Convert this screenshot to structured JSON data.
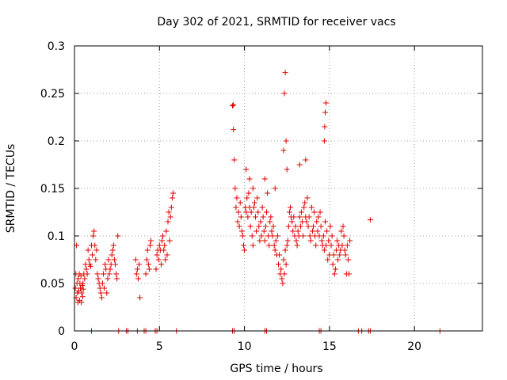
{
  "colors": {
    "series": "#e00000",
    "axis": "#000000",
    "grid": "#a0a0a0"
  },
  "chart_data": {
    "type": "scatter",
    "title": "Day 302 of 2021, SRMTID for receiver vacs",
    "xlabel": "GPS time / hours",
    "ylabel": "SRMTID / TECUs",
    "xlim": [
      0,
      24
    ],
    "ylim": [
      0,
      0.3
    ],
    "xticks": [
      0,
      5,
      10,
      15,
      20
    ],
    "xtick_labels": [
      "0",
      "5",
      "10",
      "15",
      "20"
    ],
    "yticks": [
      0,
      0.05,
      0.1,
      0.15,
      0.2,
      0.25,
      0.3
    ],
    "ytick_labels": [
      "0",
      "0.05",
      "0.1",
      "0.15",
      "0.2",
      "0.25",
      "0.3"
    ],
    "grid": true,
    "marker": "+",
    "series": [
      {
        "name": "SRMTID",
        "x": [
          0.05,
          0.08,
          0.1,
          0.12,
          0.15,
          0.18,
          0.2,
          0.22,
          0.25,
          0.28,
          0.3,
          0.32,
          0.35,
          0.38,
          0.4,
          0.42,
          0.45,
          0.48,
          0.5,
          0.52,
          0.55,
          0.6,
          0.65,
          0.7,
          0.75,
          0.8,
          0.85,
          0.9,
          0.95,
          1.0,
          1.05,
          1.1,
          1.15,
          1.2,
          1.25,
          1.3,
          1.35,
          1.4,
          1.45,
          1.5,
          1.55,
          1.6,
          1.65,
          1.7,
          1.75,
          1.8,
          1.85,
          1.9,
          1.95,
          2.0,
          2.05,
          2.1,
          2.15,
          2.2,
          2.25,
          2.3,
          2.35,
          2.4,
          2.45,
          2.5,
          2.55,
          3.6,
          3.65,
          3.7,
          3.75,
          3.8,
          3.85,
          4.2,
          4.25,
          4.3,
          4.35,
          4.4,
          4.45,
          4.5,
          4.8,
          4.85,
          4.9,
          4.95,
          5.0,
          5.05,
          5.1,
          5.15,
          5.2,
          5.25,
          5.3,
          5.35,
          5.4,
          5.45,
          5.5,
          5.55,
          5.6,
          5.65,
          5.7,
          5.75,
          5.8,
          9.3,
          9.35,
          9.4,
          9.45,
          9.5,
          9.55,
          9.6,
          9.65,
          9.7,
          9.75,
          9.8,
          9.85,
          9.9,
          9.95,
          10.0,
          10.05,
          10.1,
          10.15,
          10.2,
          10.25,
          10.3,
          10.35,
          10.4,
          10.45,
          10.5,
          10.55,
          10.6,
          10.65,
          10.7,
          10.75,
          10.8,
          10.85,
          10.9,
          10.95,
          11.0,
          11.05,
          11.1,
          11.15,
          11.2,
          11.25,
          11.3,
          11.35,
          11.4,
          11.45,
          11.5,
          11.55,
          11.6,
          11.65,
          11.7,
          11.75,
          11.8,
          11.85,
          11.9,
          11.95,
          12.0,
          12.05,
          12.1,
          12.15,
          12.2,
          12.25,
          12.3,
          12.35,
          12.4,
          12.45,
          12.5,
          12.55,
          12.6,
          12.65,
          12.7,
          12.75,
          12.8,
          12.85,
          12.9,
          12.95,
          13.0,
          13.05,
          13.1,
          13.15,
          13.2,
          13.25,
          13.3,
          13.35,
          13.4,
          13.45,
          13.5,
          13.55,
          13.6,
          13.65,
          13.7,
          13.75,
          13.8,
          13.85,
          13.9,
          13.95,
          14.0,
          14.05,
          14.1,
          14.15,
          14.2,
          14.25,
          14.3,
          14.35,
          14.4,
          14.45,
          14.5,
          14.55,
          14.6,
          14.65,
          14.7,
          14.75,
          14.8,
          14.85,
          14.9,
          14.95,
          15.0,
          15.05,
          15.1,
          15.15,
          15.2,
          15.25,
          15.3,
          15.35,
          15.4,
          15.45,
          15.5,
          15.55,
          15.6,
          15.65,
          15.7,
          15.75,
          15.8,
          15.85,
          15.9,
          15.95,
          16.0,
          16.05,
          16.1,
          16.15,
          16.2,
          17.4,
          12.3,
          12.35,
          12.4,
          12.45,
          12.5,
          14.7,
          14.75,
          14.8,
          14.72,
          10.1,
          10.3,
          10.5,
          11.2,
          11.8,
          13.6,
          9.35,
          13.25
        ],
        "y": [
          0.045,
          0.06,
          0.035,
          0.09,
          0.05,
          0.04,
          0.03,
          0.055,
          0.042,
          0.06,
          0.032,
          0.05,
          0.045,
          0.058,
          0.03,
          0.04,
          0.048,
          0.036,
          0.05,
          0.044,
          0.06,
          0.055,
          0.07,
          0.065,
          0.06,
          0.085,
          0.075,
          0.07,
          0.068,
          0.09,
          0.08,
          0.1,
          0.105,
          0.09,
          0.075,
          0.085,
          0.06,
          0.055,
          0.05,
          0.045,
          0.04,
          0.035,
          0.05,
          0.06,
          0.045,
          0.07,
          0.065,
          0.04,
          0.055,
          0.075,
          0.06,
          0.065,
          0.07,
          0.08,
          0.085,
          0.09,
          0.075,
          0.07,
          0.06,
          0.055,
          0.1,
          0.075,
          0.06,
          0.065,
          0.055,
          0.07,
          0.035,
          0.06,
          0.075,
          0.085,
          0.07,
          0.065,
          0.09,
          0.095,
          0.065,
          0.08,
          0.085,
          0.075,
          0.09,
          0.085,
          0.07,
          0.095,
          0.1,
          0.085,
          0.09,
          0.075,
          0.105,
          0.08,
          0.115,
          0.125,
          0.095,
          0.12,
          0.13,
          0.14,
          0.145,
          0.237,
          0.212,
          0.18,
          0.15,
          0.13,
          0.14,
          0.115,
          0.125,
          0.11,
          0.135,
          0.12,
          0.105,
          0.1,
          0.09,
          0.085,
          0.13,
          0.125,
          0.14,
          0.12,
          0.145,
          0.13,
          0.11,
          0.125,
          0.1,
          0.09,
          0.13,
          0.135,
          0.12,
          0.105,
          0.14,
          0.125,
          0.11,
          0.095,
          0.115,
          0.1,
          0.13,
          0.12,
          0.105,
          0.095,
          0.11,
          0.125,
          0.145,
          0.1,
          0.09,
          0.115,
          0.12,
          0.105,
          0.1,
          0.11,
          0.09,
          0.085,
          0.095,
          0.08,
          0.1,
          0.07,
          0.08,
          0.06,
          0.065,
          0.055,
          0.05,
          0.075,
          0.06,
          0.085,
          0.07,
          0.09,
          0.095,
          0.11,
          0.125,
          0.13,
          0.12,
          0.115,
          0.105,
          0.12,
          0.1,
          0.11,
          0.095,
          0.09,
          0.105,
          0.1,
          0.12,
          0.11,
          0.125,
          0.115,
          0.1,
          0.13,
          0.135,
          0.12,
          0.115,
          0.14,
          0.11,
          0.12,
          0.1,
          0.095,
          0.13,
          0.105,
          0.11,
          0.125,
          0.1,
          0.09,
          0.115,
          0.105,
          0.12,
          0.1,
          0.125,
          0.11,
          0.095,
          0.09,
          0.1,
          0.085,
          0.115,
          0.09,
          0.105,
          0.075,
          0.095,
          0.08,
          0.11,
          0.09,
          0.1,
          0.07,
          0.08,
          0.06,
          0.065,
          0.085,
          0.095,
          0.075,
          0.09,
          0.08,
          0.085,
          0.105,
          0.09,
          0.11,
          0.1,
          0.085,
          0.08,
          0.06,
          0.09,
          0.075,
          0.06,
          0.095,
          0.117,
          0.19,
          0.25,
          0.272,
          0.2,
          0.17,
          0.2,
          0.23,
          0.24,
          0.215,
          0.17,
          0.16,
          0.15,
          0.16,
          0.15,
          0.18,
          0.238,
          0.175
        ]
      }
    ],
    "zero_markers_x": [
      1.0,
      2.6,
      3.05,
      3.15,
      3.7,
      4.1,
      4.2,
      4.75,
      4.85,
      6.0,
      9.3,
      9.4,
      11.2,
      11.3,
      14.4,
      14.5,
      16.7,
      16.9,
      17.3,
      17.4,
      21.5
    ]
  }
}
